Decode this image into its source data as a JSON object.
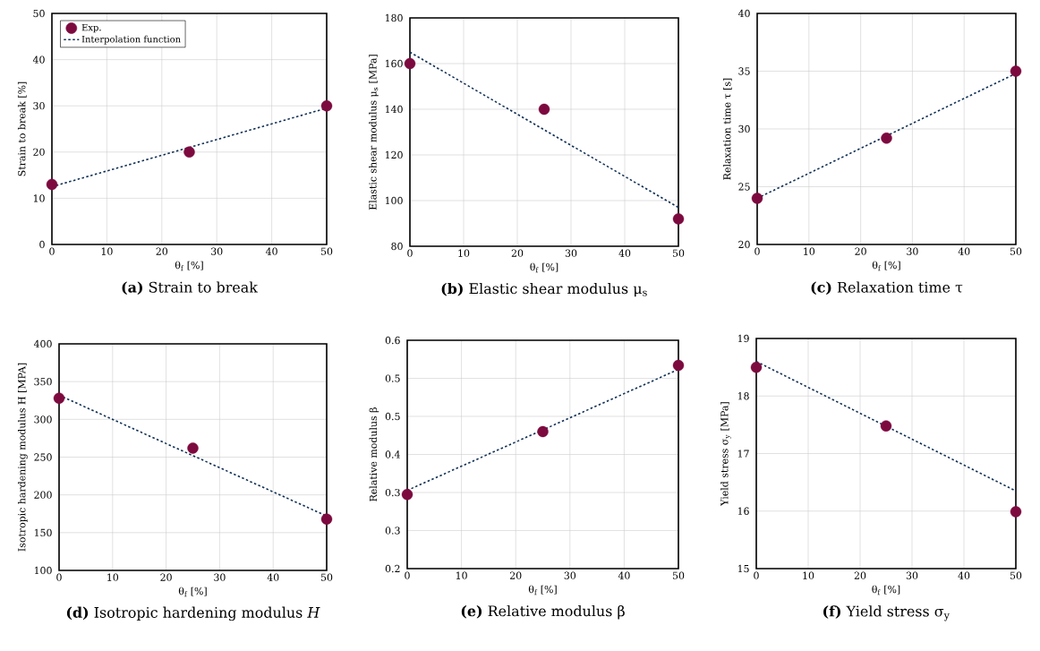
{
  "chart_data": [
    {
      "type": "scatter",
      "title": "**(a)** Strain to break",
      "xlabel": "θ$_{f}$ [%]",
      "ylabel": "Strain to break [%]",
      "xlim": [
        0,
        50
      ],
      "ylim": [
        0,
        50
      ],
      "xticks": [
        0,
        10,
        20,
        30,
        40,
        50
      ],
      "yticks": [
        0,
        10,
        20,
        30,
        40,
        50
      ],
      "grid": true,
      "legend": "top left",
      "series": [
        {
          "name": "Exp.",
          "marker": "circle",
          "color": "#7d0a3f",
          "x": [
            0,
            25,
            50
          ],
          "values": [
            13,
            20,
            30
          ]
        },
        {
          "name": "Interpolation function",
          "type": "line",
          "color": "#0f2f55",
          "line_style": "dashed",
          "x": [
            0,
            50
          ],
          "values": [
            12.5,
            29.5
          ]
        }
      ]
    },
    {
      "type": "scatter",
      "title": "**(b)** Elastic shear modulus μ$_{s}$",
      "xlabel": "θ$_{f}$ [%]",
      "ylabel": "Elastic shear modulus μ$_{s}$ [MPa]",
      "xlim": [
        0,
        50
      ],
      "ylim": [
        80,
        180
      ],
      "xticks": [
        0,
        10,
        20,
        30,
        40,
        50
      ],
      "yticks": [
        80,
        100,
        120,
        140,
        160,
        180
      ],
      "grid": true,
      "series": [
        {
          "marker": "circle",
          "color": "#7d0a3f",
          "x": [
            0,
            25,
            50
          ],
          "values": [
            160,
            140,
            92
          ]
        },
        {
          "type": "line",
          "color": "#0f2f55",
          "line_style": "dashed",
          "x": [
            0,
            50
          ],
          "values": [
            165,
            97
          ]
        }
      ]
    },
    {
      "type": "scatter",
      "title": "**(c)** Relaxation time τ",
      "xlabel": "θ$_{f}$ [%]",
      "ylabel": "Relaxation time τ [s]",
      "xlim": [
        0,
        50
      ],
      "ylim": [
        20,
        40
      ],
      "xticks": [
        0,
        10,
        20,
        30,
        40,
        50
      ],
      "yticks": [
        20,
        25,
        30,
        35,
        40
      ],
      "grid": true,
      "series": [
        {
          "marker": "circle",
          "color": "#7d0a3f",
          "x": [
            0,
            25,
            50
          ],
          "values": [
            24,
            29.2,
            35
          ]
        },
        {
          "type": "line",
          "color": "#0f2f55",
          "line_style": "dashed",
          "x": [
            0,
            50
          ],
          "values": [
            24,
            34.8
          ]
        }
      ]
    },
    {
      "type": "scatter",
      "title": "**(d)** Isotropic hardening modulus *H*",
      "xlabel": "θ$_{f}$ [%]",
      "ylabel": "Isotropic hardening modulus H [MPA]",
      "xlim": [
        0,
        50
      ],
      "ylim": [
        100,
        400
      ],
      "xticks": [
        0,
        10,
        20,
        30,
        40,
        50
      ],
      "yticks": [
        100,
        150,
        200,
        250,
        300,
        350,
        400
      ],
      "grid": true,
      "series": [
        {
          "marker": "circle",
          "color": "#7d0a3f",
          "x": [
            0,
            25,
            50
          ],
          "values": [
            328,
            262,
            168
          ]
        },
        {
          "type": "line",
          "color": "#0f2f55",
          "line_style": "dashed",
          "x": [
            0,
            50
          ],
          "values": [
            332,
            172
          ]
        }
      ]
    },
    {
      "type": "scatter",
      "title": "**(e)** Relative modulus β",
      "xlabel": "θ$_{f}$ [%]",
      "ylabel": "Relative modulus β",
      "xlim": [
        0,
        50
      ],
      "ylim": [
        0.2,
        0.6
      ],
      "xticks": [
        0,
        10,
        20,
        30,
        40,
        50
      ],
      "yticks": [
        0.2,
        {
          "value": 0.2667,
          "label": "0.3"
        },
        {
          "value": 0.3333,
          "label": "0.3"
        },
        0.4,
        {
          "value": 0.4667,
          "label": "0.5"
        },
        {
          "value": 0.5333,
          "label": "0.5"
        },
        0.6
      ],
      "grid": true,
      "series": [
        {
          "marker": "circle",
          "color": "#7d0a3f",
          "x": [
            0,
            25,
            50
          ],
          "values": [
            0.33,
            0.44,
            0.556
          ]
        },
        {
          "type": "line",
          "color": "#0f2f55",
          "line_style": "dashed",
          "x": [
            0,
            50
          ],
          "values": [
            0.337,
            0.549
          ]
        }
      ]
    },
    {
      "type": "scatter",
      "title": "**(f)** Yield stress σ$_{y}$",
      "xlabel": "θ$_{f}$ [%]",
      "ylabel": "Yield stress σ$_{y}$ [MPa]",
      "xlim": [
        0,
        50
      ],
      "ylim": [
        15,
        19
      ],
      "xticks": [
        0,
        10,
        20,
        30,
        40,
        50
      ],
      "yticks": [
        15,
        16,
        17,
        18,
        19
      ],
      "grid": true,
      "series": [
        {
          "marker": "circle",
          "color": "#7d0a3f",
          "x": [
            0,
            25,
            50
          ],
          "values": [
            18.5,
            17.48,
            15.99
          ]
        },
        {
          "type": "line",
          "color": "#0f2f55",
          "line_style": "dashed",
          "x": [
            0,
            50
          ],
          "values": [
            18.6,
            16.35
          ]
        }
      ]
    }
  ]
}
